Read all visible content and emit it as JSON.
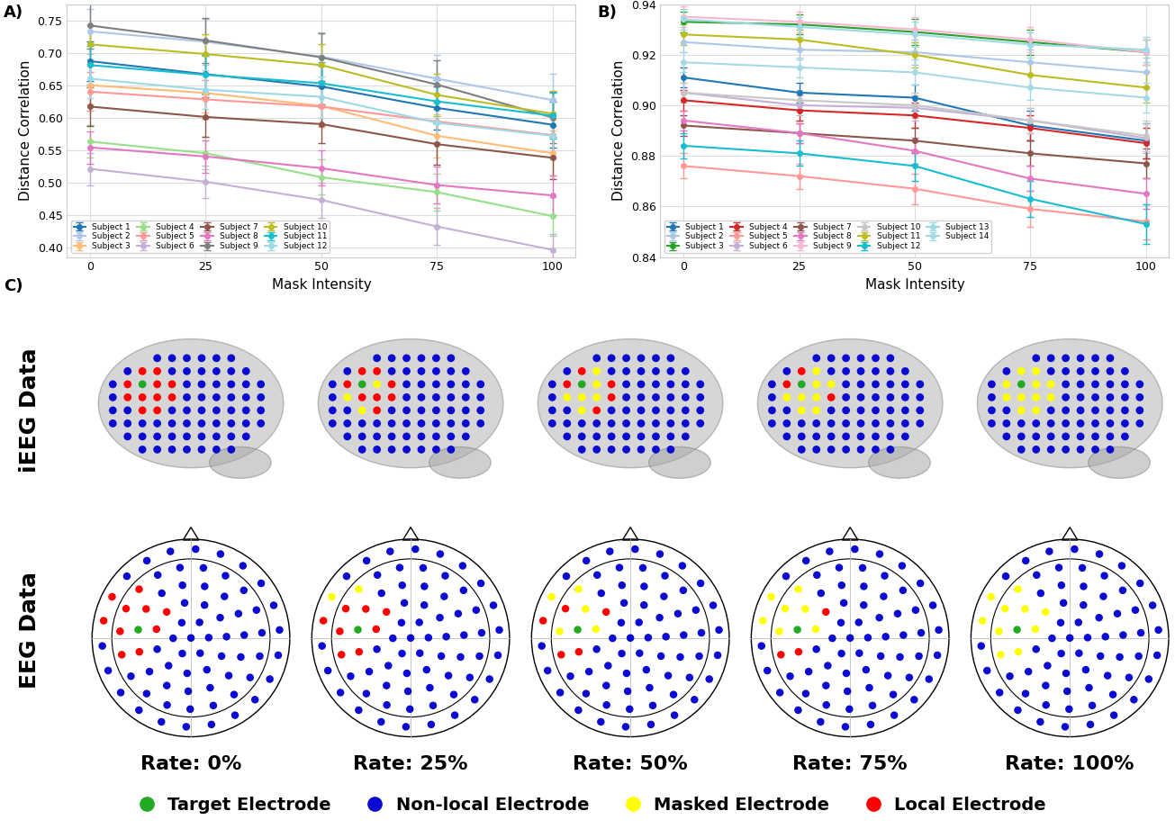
{
  "panel_labels": [
    "A)",
    "B)",
    "C)"
  ],
  "chart_data": [
    {
      "type": "line",
      "xlabel": "Mask Intensity",
      "ylabel": "Distance Correlation",
      "x": [
        0,
        25,
        50,
        75,
        100
      ],
      "xlim": [
        -5,
        105
      ],
      "xticks": [
        0,
        25,
        50,
        75,
        100
      ],
      "ylim": [
        0.385,
        0.775
      ],
      "yticks": [
        {
          "value": 0.4,
          "label": "0.40"
        },
        0.45,
        {
          "value": 0.5,
          "label": "0.50"
        },
        0.55,
        {
          "value": 0.6,
          "label": "0.60"
        },
        0.65,
        {
          "value": 0.7,
          "label": "0.70"
        },
        0.75
      ],
      "grid": true,
      "legend": "lower left",
      "marker": "o",
      "series": [
        {
          "name": "Subject 1",
          "color": "#1f77b4",
          "values": [
            0.687,
            0.667,
            0.648,
            0.615,
            0.589
          ],
          "errors": [
            0.03,
            0.03,
            0.032,
            0.033,
            0.035
          ]
        },
        {
          "name": "Subject 2",
          "color": "#aec7e8",
          "values": [
            0.733,
            0.717,
            0.694,
            0.66,
            0.627
          ],
          "errors": [
            0.035,
            0.035,
            0.037,
            0.037,
            0.04
          ]
        },
        {
          "name": "Subject 3",
          "color": "#ffbb78",
          "values": [
            0.65,
            0.638,
            0.618,
            0.572,
            0.545
          ],
          "errors": [
            0.03,
            0.03,
            0.032,
            0.033,
            0.035
          ]
        },
        {
          "name": "Subject 4",
          "color": "#98df8a",
          "values": [
            0.563,
            0.545,
            0.508,
            0.485,
            0.448
          ],
          "errors": [
            0.025,
            0.025,
            0.027,
            0.028,
            0.03
          ]
        },
        {
          "name": "Subject 5",
          "color": "#ff9896",
          "values": [
            0.64,
            0.628,
            0.617,
            0.594,
            0.573
          ],
          "errors": [
            0.03,
            0.03,
            0.03,
            0.032,
            0.033
          ]
        },
        {
          "name": "Subject 6",
          "color": "#c5b0d5",
          "values": [
            0.521,
            0.501,
            0.473,
            0.432,
            0.396
          ],
          "errors": [
            0.025,
            0.025,
            0.027,
            0.028,
            0.025
          ]
        },
        {
          "name": "Subject 7",
          "color": "#8c564b",
          "values": [
            0.617,
            0.601,
            0.59,
            0.559,
            0.538
          ],
          "errors": [
            0.03,
            0.03,
            0.03,
            0.032,
            0.033
          ]
        },
        {
          "name": "Subject 8",
          "color": "#e377c2",
          "values": [
            0.554,
            0.54,
            0.522,
            0.496,
            0.48
          ],
          "errors": [
            0.025,
            0.025,
            0.027,
            0.028,
            0.03
          ]
        },
        {
          "name": "Subject 9",
          "color": "#7f7f7f",
          "values": [
            0.742,
            0.719,
            0.693,
            0.651,
            0.6
          ],
          "errors": [
            0.035,
            0.035,
            0.037,
            0.037,
            0.04
          ]
        },
        {
          "name": "Subject 10",
          "color": "#bcbd22",
          "values": [
            0.713,
            0.698,
            0.681,
            0.635,
            0.606
          ],
          "errors": [
            0.03,
            0.03,
            0.032,
            0.033,
            0.035
          ]
        },
        {
          "name": "Subject 11",
          "color": "#17becf",
          "values": [
            0.681,
            0.666,
            0.653,
            0.625,
            0.603
          ],
          "errors": [
            0.03,
            0.03,
            0.032,
            0.033,
            0.035
          ]
        },
        {
          "name": "Subject 12",
          "color": "#9edae5",
          "values": [
            0.66,
            0.643,
            0.632,
            0.592,
            0.572
          ],
          "errors": [
            0.03,
            0.03,
            0.032,
            0.033,
            0.035
          ]
        }
      ]
    },
    {
      "type": "line",
      "xlabel": "Mask Intensity",
      "ylabel": "Distance Correlation",
      "x": [
        0,
        25,
        50,
        75,
        100
      ],
      "xlim": [
        -5,
        105
      ],
      "xticks": [
        0,
        25,
        50,
        75,
        100
      ],
      "ylim": [
        0.84,
        0.94
      ],
      "yticks": [
        0.84,
        0.86,
        0.88,
        {
          "value": 0.9,
          "label": "0.90"
        },
        0.92,
        0.94
      ],
      "grid": true,
      "legend": "lower left",
      "marker": "o",
      "series": [
        {
          "name": "Subject 1",
          "color": "#1f77b4",
          "values": [
            0.911,
            0.905,
            0.903,
            0.892,
            0.886
          ],
          "errors": [
            0.004,
            0.004,
            0.005,
            0.006,
            0.007
          ]
        },
        {
          "name": "Subject 2",
          "color": "#aec7e8",
          "values": [
            0.925,
            0.922,
            0.921,
            0.917,
            0.913
          ],
          "errors": [
            0.004,
            0.004,
            0.005,
            0.005,
            0.006
          ]
        },
        {
          "name": "Subject 3",
          "color": "#2ca02c",
          "values": [
            0.933,
            0.932,
            0.929,
            0.925,
            0.921
          ],
          "errors": [
            0.004,
            0.004,
            0.005,
            0.005,
            0.005
          ]
        },
        {
          "name": "Subject 4",
          "color": "#d62728",
          "values": [
            0.902,
            0.898,
            0.896,
            0.891,
            0.885
          ],
          "errors": [
            0.004,
            0.004,
            0.005,
            0.005,
            0.006
          ]
        },
        {
          "name": "Subject 5",
          "color": "#ff9896",
          "values": [
            0.876,
            0.872,
            0.867,
            0.859,
            0.854
          ],
          "errors": [
            0.005,
            0.005,
            0.006,
            0.007,
            0.007
          ]
        },
        {
          "name": "Subject 6",
          "color": "#c5b0d5",
          "values": [
            0.905,
            0.9,
            0.899,
            0.894,
            0.887
          ],
          "errors": [
            0.004,
            0.004,
            0.005,
            0.005,
            0.006
          ]
        },
        {
          "name": "Subject 7",
          "color": "#8c564b",
          "values": [
            0.892,
            0.889,
            0.886,
            0.881,
            0.877
          ],
          "errors": [
            0.004,
            0.004,
            0.005,
            0.005,
            0.006
          ]
        },
        {
          "name": "Subject 8",
          "color": "#e377c2",
          "values": [
            0.894,
            0.889,
            0.882,
            0.871,
            0.865
          ],
          "errors": [
            0.004,
            0.004,
            0.005,
            0.005,
            0.006
          ]
        },
        {
          "name": "Subject 9",
          "color": "#f7b6d2",
          "values": [
            0.935,
            0.933,
            0.93,
            0.926,
            0.921
          ],
          "errors": [
            0.004,
            0.004,
            0.005,
            0.005,
            0.005
          ]
        },
        {
          "name": "Subject 10",
          "color": "#c7c7c7",
          "values": [
            0.905,
            0.902,
            0.9,
            0.894,
            0.888
          ],
          "errors": [
            0.004,
            0.004,
            0.005,
            0.005,
            0.006
          ]
        },
        {
          "name": "Subject 11",
          "color": "#bcbd22",
          "values": [
            0.928,
            0.926,
            0.92,
            0.912,
            0.907
          ],
          "errors": [
            0.004,
            0.004,
            0.005,
            0.005,
            0.006
          ]
        },
        {
          "name": "Subject 12",
          "color": "#17becf",
          "values": [
            0.884,
            0.881,
            0.876,
            0.863,
            0.853
          ],
          "errors": [
            0.005,
            0.005,
            0.006,
            0.007,
            0.008
          ]
        },
        {
          "name": "Subject 13",
          "color": "#9edae5",
          "values": [
            0.934,
            0.931,
            0.928,
            0.924,
            0.922
          ],
          "errors": [
            0.004,
            0.004,
            0.005,
            0.005,
            0.005
          ]
        },
        {
          "name": "Subject 14",
          "color": "#a6d9e3",
          "values": [
            0.917,
            0.915,
            0.913,
            0.907,
            0.903
          ],
          "errors": [
            0.004,
            0.004,
            0.005,
            0.005,
            0.006
          ]
        }
      ]
    }
  ],
  "diagram": {
    "rows": [
      {
        "label": "iEEG Data",
        "local": 11,
        "masked": [
          0,
          3,
          6,
          8,
          11
        ]
      },
      {
        "label": "EEG Data",
        "local": 10,
        "masked": [
          0,
          2,
          5,
          7,
          10
        ]
      }
    ],
    "rates": [
      {
        "value": 0,
        "label": "Rate: 0%"
      },
      {
        "value": 25,
        "label": "Rate: 25%"
      },
      {
        "value": 50,
        "label": "Rate: 50%"
      },
      {
        "value": 75,
        "label": "Rate: 75%"
      },
      {
        "value": 100,
        "label": "Rate: 100%"
      }
    ],
    "legend": [
      {
        "name": "Target Electrode",
        "color": "#22aa22"
      },
      {
        "name": "Non-local Electrode",
        "color": "#0a0ad0"
      },
      {
        "name": "Masked Electrode",
        "color": "#ffff00"
      },
      {
        "name": "Local Electrode",
        "color": "#ff0000"
      }
    ]
  }
}
